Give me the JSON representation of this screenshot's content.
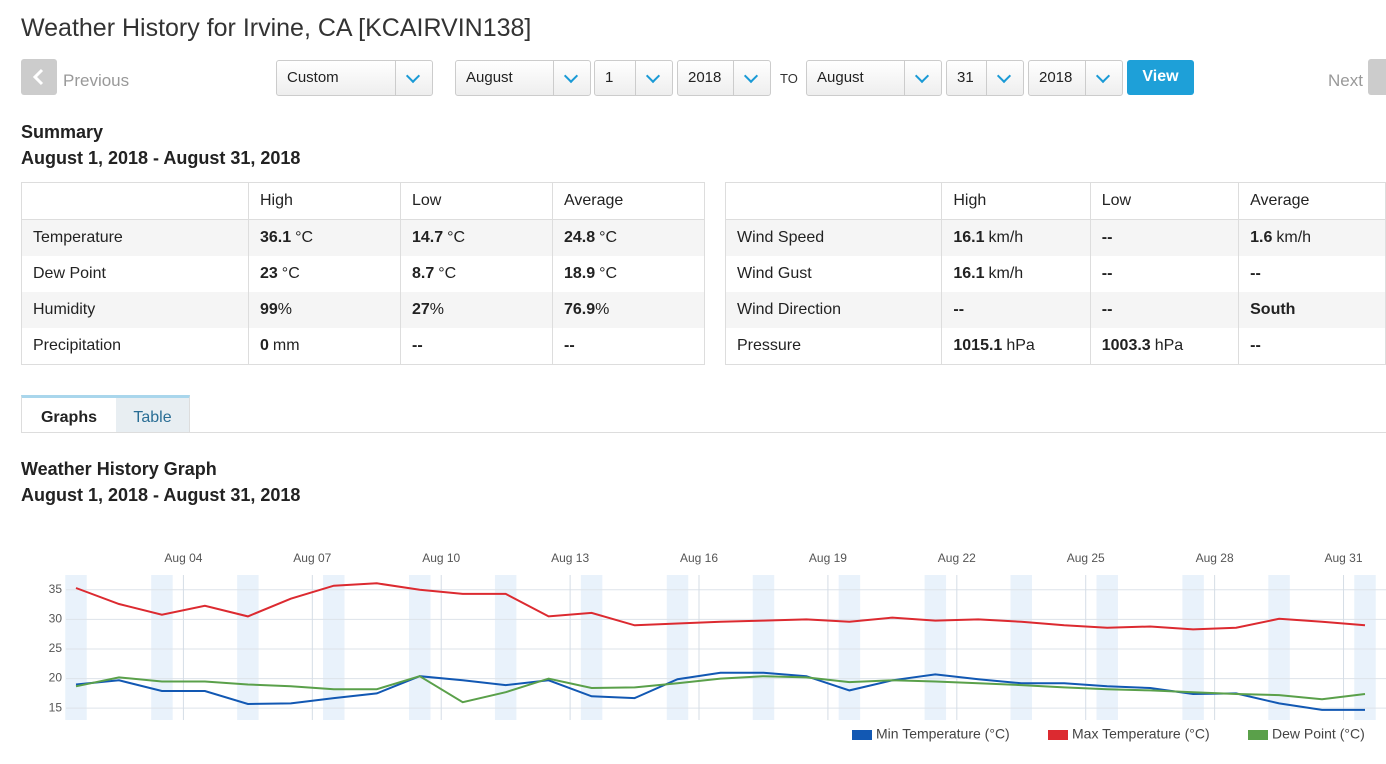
{
  "header": {
    "title": "Weather History for Irvine, CA [KCAIRVIN138]"
  },
  "nav": {
    "previous": "Previous",
    "next": "Next",
    "mode": "Custom",
    "from": {
      "month": "August",
      "day": "1",
      "year": "2018"
    },
    "to_label": "TO",
    "to": {
      "month": "August",
      "day": "31",
      "year": "2018"
    },
    "view": "View"
  },
  "summary": {
    "title": "Summary",
    "range": "August 1, 2018 - August 31, 2018",
    "tables": [
      {
        "header": [
          "High",
          "Low",
          "Average"
        ],
        "rows": [
          {
            "label": "Temperature",
            "cells": [
              {
                "value": "36.1",
                "unit": "°C"
              },
              {
                "value": "14.7",
                "unit": "°C"
              },
              {
                "value": "24.8",
                "unit": "°C"
              }
            ]
          },
          {
            "label": "Dew Point",
            "cells": [
              {
                "value": "23",
                "unit": "°C"
              },
              {
                "value": "8.7",
                "unit": "°C"
              },
              {
                "value": "18.9",
                "unit": "°C"
              }
            ]
          },
          {
            "label": "Humidity",
            "cells": [
              {
                "value": "99",
                "unit": "%"
              },
              {
                "value": "27",
                "unit": "%"
              },
              {
                "value": "76.9",
                "unit": "%"
              }
            ]
          },
          {
            "label": "Precipitation",
            "cells": [
              {
                "value": "0",
                "unit": "mm"
              },
              {
                "value": "--"
              },
              {
                "value": "--"
              }
            ]
          }
        ]
      },
      {
        "header": [
          "High",
          "Low",
          "Average"
        ],
        "rows": [
          {
            "label": "Wind Speed",
            "cells": [
              {
                "value": "16.1",
                "unit": "km/h"
              },
              {
                "value": "--"
              },
              {
                "value": "1.6",
                "unit": "km/h"
              }
            ]
          },
          {
            "label": "Wind Gust",
            "cells": [
              {
                "value": "16.1",
                "unit": "km/h"
              },
              {
                "value": "--"
              },
              {
                "value": "--"
              }
            ]
          },
          {
            "label": "Wind Direction",
            "cells": [
              {
                "value": "--"
              },
              {
                "value": "--"
              },
              {
                "value": "South"
              }
            ]
          },
          {
            "label": "Pressure",
            "cells": [
              {
                "value": "1015.1",
                "unit": "hPa"
              },
              {
                "value": "1003.3",
                "unit": "hPa"
              },
              {
                "value": "--"
              }
            ]
          }
        ]
      }
    ]
  },
  "tabs": [
    "Graphs",
    "Table"
  ],
  "graph": {
    "title": "Weather History Graph",
    "range": "August 1, 2018 - August 31, 2018"
  },
  "chart_data": {
    "type": "line",
    "categories": [
      null,
      null,
      null,
      "Aug 04",
      null,
      null,
      "Aug 07",
      null,
      null,
      "Aug 10",
      null,
      null,
      "Aug 13",
      null,
      null,
      "Aug 16",
      null,
      null,
      "Aug 19",
      null,
      null,
      "Aug 22",
      null,
      null,
      "Aug 25",
      null,
      null,
      "Aug 28",
      null,
      null,
      "Aug 31"
    ],
    "ylim": [
      13,
      37.5
    ],
    "yticks": [
      15,
      20,
      25,
      30,
      35
    ],
    "grid": true,
    "legend": "bottom-right",
    "series": [
      {
        "name": "Min Temperature (°C)",
        "color": "#1258b3",
        "values": [
          19,
          19.7,
          17.9,
          17.9,
          15.7,
          15.8,
          16.7,
          17.5,
          20.4,
          19.7,
          18.9,
          19.7,
          17,
          16.7,
          19.9,
          21,
          21,
          20.4,
          18,
          19.7,
          20.7,
          19.9,
          19.2,
          19.2,
          18.7,
          18.4,
          17.4,
          17.5,
          15.8,
          14.7,
          14.7
        ]
      },
      {
        "name": "Max Temperature (°C)",
        "color": "#dc2a30",
        "values": [
          35.3,
          32.6,
          30.8,
          32.3,
          30.5,
          33.5,
          35.7,
          36.1,
          35,
          34.3,
          34.3,
          30.5,
          31.1,
          29,
          29.3,
          29.6,
          29.8,
          30,
          29.6,
          30.3,
          29.8,
          30,
          29.6,
          29,
          28.6,
          28.8,
          28.3,
          28.6,
          30.1,
          29.6,
          29
        ]
      },
      {
        "name": "Dew Point (°C)",
        "color": "#5aa04a",
        "values": [
          18.7,
          20.2,
          19.5,
          19.5,
          19,
          18.7,
          18.2,
          18.2,
          20.4,
          16,
          17.7,
          20,
          18.4,
          18.5,
          19.2,
          20,
          20.4,
          20.2,
          19.4,
          19.7,
          19.5,
          19.2,
          18.9,
          18.5,
          18.2,
          18,
          17.7,
          17.4,
          17.2,
          16.5,
          17.4
        ]
      }
    ]
  }
}
